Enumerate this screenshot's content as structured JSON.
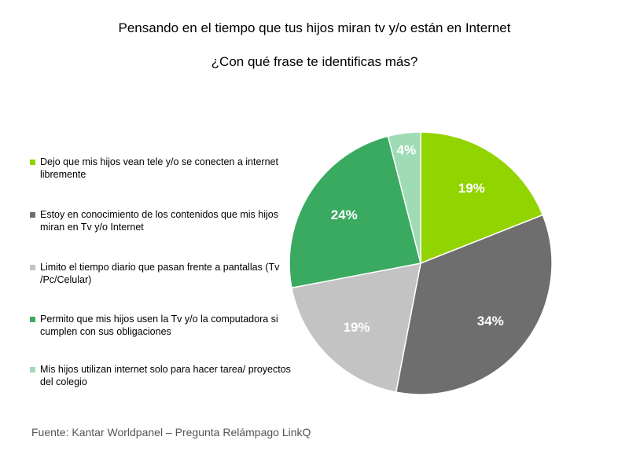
{
  "title_line_1": "Pensando en el tiempo que tus hijos miran tv y/o están en Internet",
  "title_line_2": "¿Con qué frase te identificas más?",
  "source": "Fuente: Kantar Worldpanel – Pregunta Relámpago LinkQ",
  "chart_data": {
    "type": "pie",
    "title": "Pensando en el tiempo que tus hijos miran tv y/o están en Internet ¿Con qué frase te identificas más?",
    "legend_position": "left",
    "slices": [
      {
        "label": "Dejo que mis hijos vean tele y/o se conecten a internet libremente",
        "value": 19,
        "display": "19%",
        "color": "#92d400"
      },
      {
        "label": "Estoy  en conocimiento de los contenidos que mis hijos miran en Tv y/o Internet",
        "value": 34,
        "display": "34%",
        "color": "#6e6e6e"
      },
      {
        "label": "Limito el tiempo diario que pasan frente a pantallas (Tv /Pc/Celular)",
        "value": 19,
        "display": "19%",
        "color": "#c3c3c3"
      },
      {
        "label": "Permito que mis hijos usen la Tv y/o la computadora si cumplen con sus obligaciones",
        "value": 24,
        "display": "24%",
        "color": "#3aaa60"
      },
      {
        "label": "Mis hijos utilizan internet solo para hacer tarea/ proyectos del colegio",
        "value": 4,
        "display": "4%",
        "color": "#9fdcb6"
      }
    ]
  }
}
